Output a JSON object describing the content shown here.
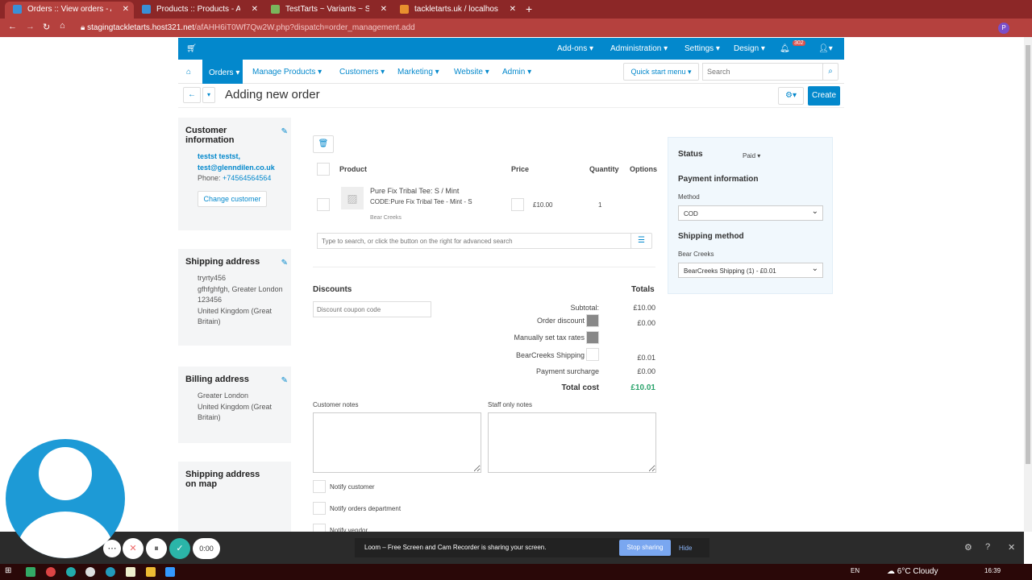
{
  "browser": {
    "tabs": [
      {
        "label": "Orders :: View orders - Administr",
        "active": true
      },
      {
        "label": "Products :: Products - Administra"
      },
      {
        "label": "TestTarts ~ Variants ~ S / Mint ~"
      },
      {
        "label": "tackletarts.uk / localhost / stagin"
      }
    ],
    "url_host": "stagingtackletarts.host321.net",
    "url_path": "/afAHH6iT0Wf7Qw2W.php?dispatch=order_management.add"
  },
  "topnav": {
    "items": [
      "Add-ons ▾",
      "Administration ▾",
      "Settings ▾",
      "Design ▾"
    ],
    "notifications": "302",
    "user": "▾"
  },
  "menu": {
    "items": [
      "Orders ▾",
      "Manage Products ▾",
      "Customers ▾",
      "Marketing ▾",
      "Website ▾",
      "Admin ▾"
    ],
    "quick_start": "Quick start menu ▾",
    "search_placeholder": "Search"
  },
  "header": {
    "title": "Adding new order",
    "create": "Create"
  },
  "customer": {
    "title": "Customer information",
    "name": "testst testst,",
    "email": "test@glenndilen.co.uk",
    "phone_label": "Phone:",
    "phone": "+74564564564",
    "change": "Change customer"
  },
  "shipping": {
    "title": "Shipping address",
    "lines": [
      "tryrty456",
      "gfhfghfgh, Greater London",
      "123456",
      "United Kingdom (Great",
      "Britain)"
    ]
  },
  "billing": {
    "title": "Billing address",
    "lines": [
      "Greater London",
      "United Kingdom (Great",
      "Britain)"
    ]
  },
  "map": {
    "title": "Shipping address on map"
  },
  "products": {
    "headers": {
      "product": "Product",
      "price": "Price",
      "quantity": "Quantity",
      "options": "Options"
    },
    "items": [
      {
        "name": "Pure Fix Tribal Tee: S / Mint",
        "code": "CODE:Pure Fix Tribal Tee - Mint - S",
        "vendor": "Bear Creeks",
        "price": "£10.00",
        "quantity": "1"
      }
    ],
    "search_placeholder": "Type to search, or click the button on the right for advanced search"
  },
  "discounts": {
    "title": "Discounts",
    "placeholder": "Discount coupon code"
  },
  "totals": {
    "title": "Totals",
    "rows": [
      {
        "label": "Subtotal:",
        "value": "£10.00"
      },
      {
        "label": "Order discount",
        "value": "£0.00"
      },
      {
        "label": "Manually set tax rates",
        "value": ""
      },
      {
        "label": "BearCreeks Shipping",
        "value": "£0.01"
      },
      {
        "label": "Payment surcharge",
        "value": "£0.00"
      }
    ],
    "total_label": "Total cost",
    "total_value": "£10.01",
    "total_color": "#2aa36b"
  },
  "notes": {
    "customer": "Customer notes",
    "staff": "Staff only notes"
  },
  "notify": [
    "Notify customer",
    "Notify orders department",
    "Notify vendor"
  ],
  "status": {
    "label": "Status",
    "value": "Paid ▾",
    "payment_title": "Payment information",
    "method_label": "Method",
    "method": "COD",
    "shipping_title": "Shipping method",
    "shipping_vendor": "Bear Creeks",
    "shipping": "BearCreeks Shipping (1) - £0.01"
  },
  "loom": {
    "timer": "0:00",
    "message": "Loom – Free Screen and Cam Recorder is sharing your screen.",
    "stop": "Stop sharing",
    "hide": "Hide"
  },
  "taskbar": {
    "lang": "EN",
    "weather": "6°C  Cloudy",
    "time": "16:39"
  },
  "colors": {
    "accent": "#0388cc",
    "browser": "#b5413e"
  }
}
